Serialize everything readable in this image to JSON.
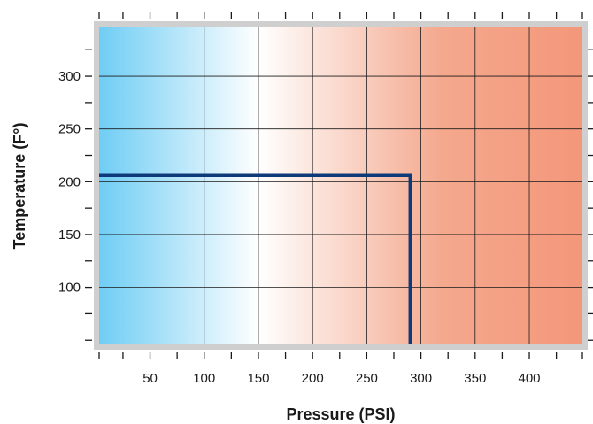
{
  "chart_data": {
    "type": "line",
    "title": "",
    "xlabel": "Pressure (PSI)",
    "ylabel": "Temperature (F°)",
    "xlim": [
      3,
      449
    ],
    "ylim": [
      46,
      347
    ],
    "x_ticks": [
      50,
      100,
      150,
      200,
      250,
      300,
      350,
      400
    ],
    "y_ticks": [
      100,
      150,
      200,
      250,
      300
    ],
    "x_minor_step": 25,
    "y_minor_step": 25,
    "grid": true,
    "background_gradient": {
      "direction": "horizontal",
      "stops": [
        {
          "x": 3,
          "color": "#6fcdf4"
        },
        {
          "x": 150,
          "color": "#ffffff"
        },
        {
          "x": 320,
          "color": "#f4a88d"
        },
        {
          "x": 449,
          "color": "#f4977a"
        }
      ]
    },
    "series": [
      {
        "points": [
          [
            3,
            206
          ],
          [
            290,
            206
          ],
          [
            290,
            46
          ]
        ],
        "color": "#0f3a7a"
      }
    ]
  }
}
